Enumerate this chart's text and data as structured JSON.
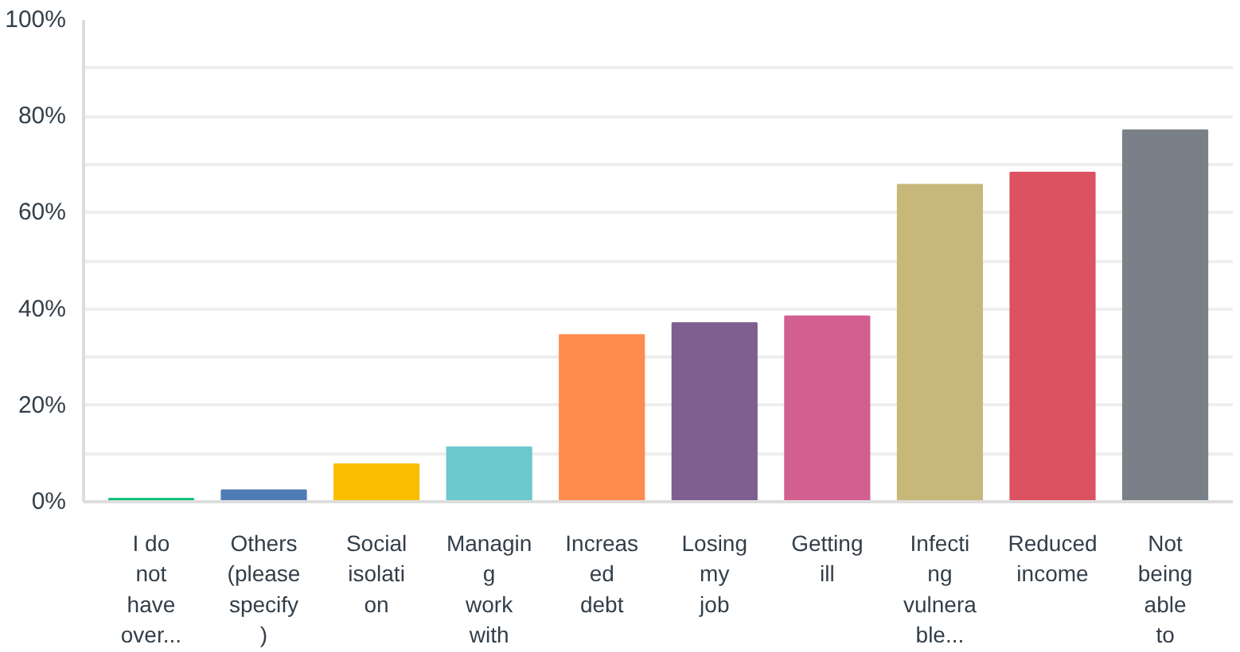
{
  "chart_data": {
    "type": "bar",
    "categories": [
      "I do\nnot\nhave\nover...",
      "Others\n(please\nspecify\n)",
      "Social\nisolati\non",
      "Managin\ng\nwork\nwith",
      "Increas\ned\ndebt",
      "Losing\nmy\njob",
      "Getting\nill",
      "Infecti\nng\nvulnera\nble...",
      "Reduced\nincome",
      "Not\nbeing\nable\nto"
    ],
    "values": [
      0.6,
      2.4,
      7.8,
      11.3,
      34.6,
      37.1,
      38.5,
      65.8,
      68.3,
      77.1
    ],
    "colors": [
      "#00bf6f",
      "#507cb6",
      "#f9be00",
      "#6bc8cd",
      "#ff8b4f",
      "#7f5e90",
      "#d25f90",
      "#c7b879",
      "#dc5260",
      "#7a8087"
    ],
    "ylim": [
      0,
      100
    ],
    "yticks": [
      {
        "value": 0,
        "label": "0%"
      },
      {
        "value": 10,
        "label": null
      },
      {
        "value": 20,
        "label": "20%"
      },
      {
        "value": 30,
        "label": null
      },
      {
        "value": 40,
        "label": "40%"
      },
      {
        "value": 50,
        "label": null
      },
      {
        "value": 60,
        "label": "60%"
      },
      {
        "value": 70,
        "label": null
      },
      {
        "value": 80,
        "label": "80%"
      },
      {
        "value": 90,
        "label": null
      },
      {
        "value": 100,
        "label": "100%"
      }
    ],
    "grid": "y"
  }
}
